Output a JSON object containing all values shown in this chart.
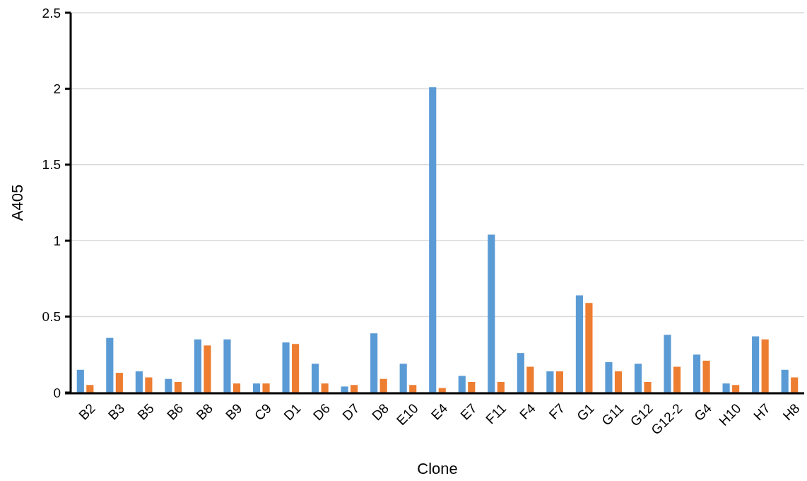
{
  "chart_data": {
    "type": "bar",
    "xlabel": "Clone",
    "ylabel": "A405",
    "categories": [
      "B2",
      "B3",
      "B5",
      "B6",
      "B8",
      "B9",
      "C9",
      "D1",
      "D6",
      "D7",
      "D8",
      "E10",
      "E4",
      "E7",
      "F11",
      "F4",
      "F7",
      "G1",
      "G11",
      "G12",
      "G12-2",
      "G4",
      "H10",
      "H7",
      "H8"
    ],
    "series": [
      {
        "color": "#5b9bd5",
        "values": [
          0.15,
          0.36,
          0.14,
          0.09,
          0.35,
          0.35,
          0.06,
          0.33,
          0.19,
          0.04,
          0.39,
          0.19,
          2.01,
          0.11,
          1.04,
          0.26,
          0.14,
          0.64,
          0.2,
          0.19,
          0.38,
          0.25,
          0.06,
          0.37,
          0.15
        ]
      },
      {
        "color": "#ed7d31",
        "values": [
          0.05,
          0.13,
          0.1,
          0.07,
          0.31,
          0.06,
          0.06,
          0.32,
          0.06,
          0.05,
          0.09,
          0.05,
          0.03,
          0.07,
          0.07,
          0.17,
          0.14,
          0.59,
          0.14,
          0.07,
          0.17,
          0.21,
          0.05,
          0.35,
          0.1
        ]
      }
    ],
    "ylim": [
      0,
      2.5
    ],
    "yticks": [
      {
        "value": 0,
        "label": "0"
      },
      {
        "value": 0.5,
        "label": "0.5"
      },
      {
        "value": 1,
        "label": "1"
      },
      {
        "value": 1.5,
        "label": "1.5"
      },
      {
        "value": 2,
        "label": "2"
      },
      {
        "value": 2.5,
        "label": "2.5"
      }
    ],
    "grid": "y"
  }
}
